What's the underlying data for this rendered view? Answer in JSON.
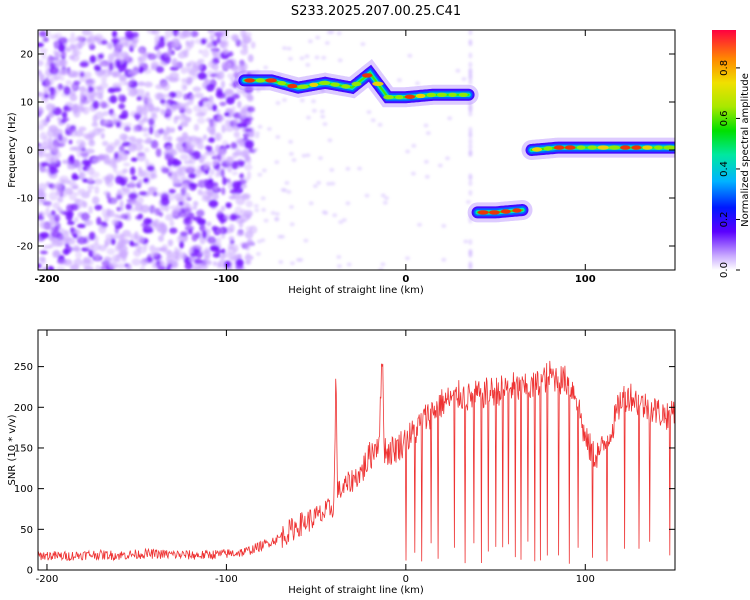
{
  "chart_data": [
    {
      "type": "heatmap",
      "title": "S233.2025.207.00.25.C41",
      "xlabel": "Height of straight line (km)",
      "ylabel": "Frequency (Hz)",
      "xlim": [
        -205,
        150
      ],
      "ylim": [
        -25,
        25
      ],
      "xticks": [
        -200,
        -100,
        0,
        100
      ],
      "yticks": [
        -20,
        -10,
        0,
        10,
        20
      ],
      "colorbar": {
        "label": "Normalized spectral amplitude",
        "range": [
          0.0,
          0.95
        ],
        "ticks": [
          "0.0",
          "0.2",
          "0.4",
          "0.6",
          "0.8"
        ]
      },
      "tracks": [
        {
          "x": [
            -90,
            -75,
            -60,
            -45,
            -30,
            -20,
            -10,
            0,
            15,
            35
          ],
          "y": [
            14.5,
            14.5,
            13,
            14,
            13,
            16,
            11,
            11,
            11.5,
            11.5
          ],
          "amplitude": 0.55
        },
        {
          "x": [
            40,
            50,
            65
          ],
          "y": [
            -13,
            -13,
            -12.5
          ],
          "amplitude": 0.9
        },
        {
          "x": [
            70,
            85,
            100,
            120,
            150
          ],
          "y": [
            0,
            0.5,
            0.5,
            0.5,
            0.5
          ],
          "amplitude": 0.55
        }
      ],
      "noise_region_x": [
        -205,
        -85
      ],
      "noise_color": "#7a1cff"
    },
    {
      "type": "line",
      "xlabel": "Height of straight line (km)",
      "ylabel": "SNR (10 * v/v)",
      "xlim": [
        -205,
        150
      ],
      "ylim": [
        0,
        295
      ],
      "xticks": [
        -200,
        -100,
        0,
        100
      ],
      "yticks": [
        0,
        50,
        100,
        150,
        200,
        250
      ],
      "series": [
        {
          "color": "#ee3333",
          "x": [
            -205,
            -190,
            -175,
            -160,
            -145,
            -130,
            -115,
            -100,
            -90,
            -80,
            -70,
            -60,
            -50,
            -45,
            -40,
            -39,
            -38,
            -35,
            -30,
            -25,
            -20,
            -15,
            -13,
            -12,
            -10,
            -5,
            0,
            5,
            10,
            15,
            20,
            25,
            30,
            35,
            40,
            45,
            50,
            55,
            60,
            65,
            70,
            75,
            80,
            85,
            90,
            95,
            100,
            105,
            110,
            115,
            120,
            125,
            130,
            135,
            140,
            145,
            150
          ],
          "y": [
            18,
            17,
            19,
            18,
            20,
            19,
            18,
            20,
            22,
            30,
            40,
            55,
            65,
            70,
            80,
            245,
            95,
            100,
            110,
            120,
            140,
            160,
            265,
            150,
            145,
            150,
            160,
            170,
            185,
            195,
            205,
            210,
            215,
            212,
            215,
            218,
            220,
            222,
            225,
            222,
            224,
            230,
            240,
            235,
            232,
            215,
            160,
            140,
            150,
            175,
            210,
            215,
            205,
            200,
            195,
            190,
            200
          ]
        }
      ],
      "dropouts_x": [
        0,
        5,
        9,
        14,
        18,
        27,
        33,
        38,
        42,
        46,
        50,
        54,
        57,
        61,
        64,
        68,
        72,
        75,
        79,
        85,
        91,
        96,
        104,
        112,
        122,
        130,
        136,
        147
      ]
    }
  ]
}
